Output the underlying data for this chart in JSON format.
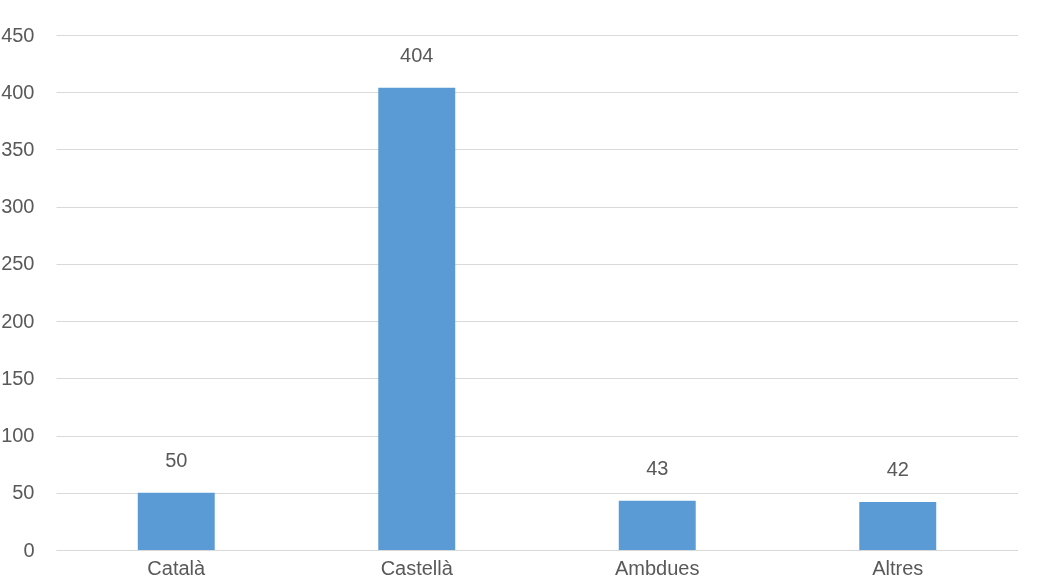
{
  "chart_data": {
    "type": "bar",
    "categories": [
      "Català",
      "Castellà",
      "Ambdues",
      "Altres"
    ],
    "values": [
      50,
      404,
      43,
      42
    ],
    "color": "#5b9bd5",
    "ylim": [
      0,
      450
    ],
    "yticks": [
      0,
      50,
      100,
      150,
      200,
      250,
      300,
      350,
      400,
      450
    ],
    "grid": "y",
    "data_labels": true
  }
}
